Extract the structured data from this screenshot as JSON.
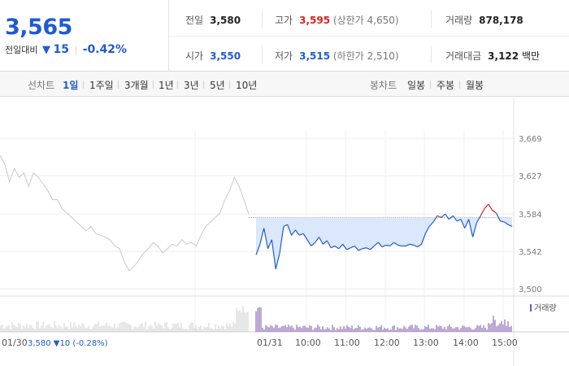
{
  "quote": {
    "price": "3,565",
    "change_label": "전일대비",
    "change_arrow": "▼",
    "change_value": "15",
    "change_pct": "-0.42%",
    "prev_label": "전일",
    "prev_value": "3,580",
    "open_label": "시가",
    "open_value": "3,550",
    "high_label": "고가",
    "high_value": "3,595",
    "high_sub": "(상한가 4,650)",
    "low_label": "저가",
    "low_value": "3,515",
    "low_sub": "(하한가 2,510)",
    "volume_label": "거래량",
    "volume_value": "878,178",
    "amount_label": "거래대금",
    "amount_value": "3,122",
    "amount_unit": "백만"
  },
  "tabs": {
    "line_head": "선차트",
    "line_items": [
      "1일",
      "1주일",
      "3개월",
      "1년",
      "3년",
      "5년",
      "10년"
    ],
    "line_active": "1일",
    "candle_head": "봉차트",
    "candle_items": [
      "일봉",
      "주봉",
      "월봉"
    ]
  },
  "colors": {
    "up": "#e02020",
    "down": "#1f5bd1",
    "prev_day": "#c8c8c8",
    "volume": "#7a55a8",
    "fill": "#dbe8fb"
  },
  "chart_data": {
    "type": "line",
    "ylim": [
      3500,
      3669
    ],
    "yticks": [
      3500,
      3542,
      3584,
      3627,
      3669
    ],
    "ytick_labels": [
      "3,500",
      "3,542",
      "3,584",
      "3,627",
      "3,669"
    ],
    "prev_close": 3580,
    "prev_day_label": "01/30",
    "prev_day_info": "3,580 ▼10 (-0.28%)",
    "today_label": "01/31",
    "xtick_labels": [
      "10:00",
      "11:00",
      "12:00",
      "13:00",
      "14:00",
      "15:00"
    ],
    "volume_legend": "거래량",
    "prev_day_series": [
      3650,
      3640,
      3620,
      3635,
      3625,
      3630,
      3615,
      3630,
      3625,
      3618,
      3610,
      3600,
      3600,
      3590,
      3585,
      3580,
      3575,
      3570,
      3565,
      3570,
      3562,
      3560,
      3558,
      3555,
      3548,
      3545,
      3530,
      3520,
      3525,
      3532,
      3540,
      3545,
      3552,
      3548,
      3540,
      3545,
      3550,
      3548,
      3555,
      3550,
      3552,
      3548,
      3560,
      3570,
      3575,
      3580,
      3585,
      3600,
      3610,
      3625,
      3615,
      3600,
      3584
    ],
    "today_series": [
      3538,
      3550,
      3568,
      3545,
      3555,
      3522,
      3540,
      3570,
      3572,
      3560,
      3566,
      3560,
      3562,
      3555,
      3548,
      3552,
      3558,
      3550,
      3554,
      3546,
      3548,
      3545,
      3550,
      3544,
      3546,
      3548,
      3543,
      3545,
      3546,
      3544,
      3548,
      3552,
      3547,
      3549,
      3548,
      3552,
      3549,
      3548,
      3548,
      3550,
      3549,
      3547,
      3550,
      3562,
      3570,
      3575,
      3582,
      3580,
      3584,
      3578,
      3582,
      3576,
      3578,
      3568,
      3578,
      3558,
      3574,
      3582,
      3590,
      3595,
      3588,
      3585,
      3576,
      3575,
      3572,
      3570
    ]
  }
}
